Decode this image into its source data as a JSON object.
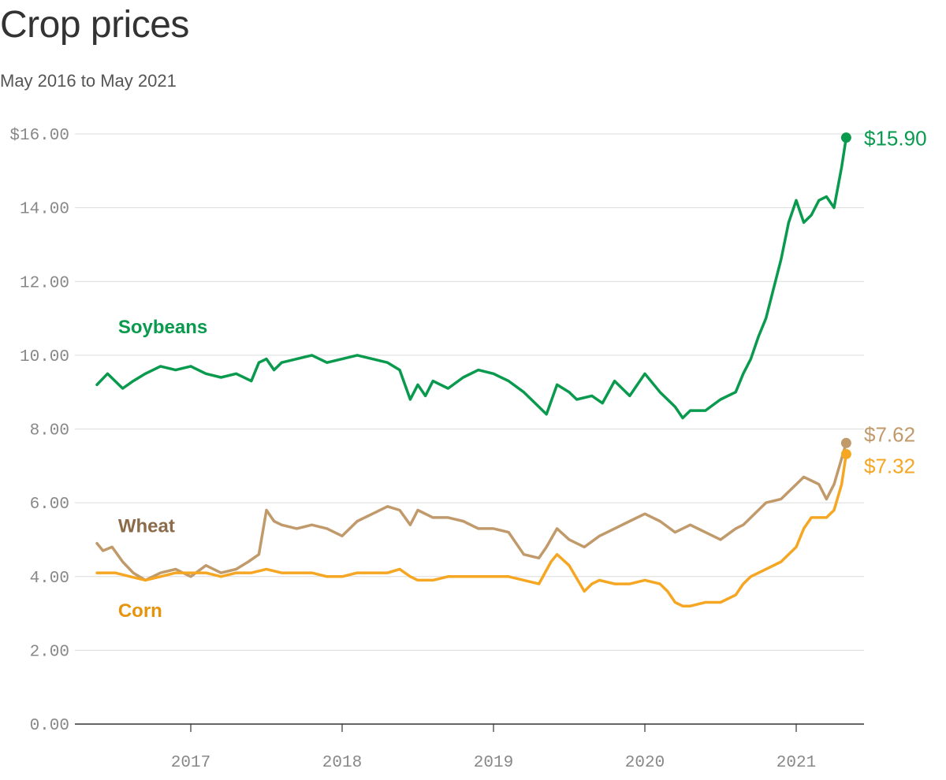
{
  "chart_data": {
    "type": "line",
    "title": "Crop prices",
    "subtitle": "May 2016 to May 2021",
    "ylim": [
      0,
      16
    ],
    "y_ticks": [
      0,
      2,
      4,
      6,
      8,
      10,
      12,
      14,
      16
    ],
    "y_tick_labels": [
      "0.00",
      "2.00",
      "4.00",
      "6.00",
      "8.00",
      "10.00",
      "12.00",
      "14.00",
      "$16.00"
    ],
    "xlim": [
      2016.3,
      2021.45
    ],
    "x_ticks": [
      2017,
      2018,
      2019,
      2020,
      2021
    ],
    "x_tick_labels": [
      "2017",
      "2018",
      "2019",
      "2020",
      "2021"
    ],
    "grid": true,
    "series": [
      {
        "name": "Soybeans",
        "color": "#0a9a4e",
        "end_label": "$15.90",
        "x": [
          2016.38,
          2016.45,
          2016.55,
          2016.62,
          2016.7,
          2016.8,
          2016.9,
          2017.0,
          2017.1,
          2017.2,
          2017.3,
          2017.4,
          2017.45,
          2017.5,
          2017.55,
          2017.6,
          2017.7,
          2017.8,
          2017.9,
          2018.0,
          2018.1,
          2018.2,
          2018.3,
          2018.38,
          2018.45,
          2018.5,
          2018.55,
          2018.6,
          2018.7,
          2018.8,
          2018.9,
          2019.0,
          2019.1,
          2019.2,
          2019.3,
          2019.35,
          2019.42,
          2019.5,
          2019.55,
          2019.65,
          2019.72,
          2019.8,
          2019.9,
          2020.0,
          2020.1,
          2020.2,
          2020.25,
          2020.3,
          2020.4,
          2020.5,
          2020.6,
          2020.65,
          2020.7,
          2020.75,
          2020.8,
          2020.85,
          2020.9,
          2020.95,
          2021.0,
          2021.05,
          2021.1,
          2021.15,
          2021.2,
          2021.25,
          2021.3,
          2021.33
        ],
        "values": [
          9.2,
          9.5,
          9.1,
          9.3,
          9.5,
          9.7,
          9.6,
          9.7,
          9.5,
          9.4,
          9.5,
          9.3,
          9.8,
          9.9,
          9.6,
          9.8,
          9.9,
          10.0,
          9.8,
          9.9,
          10.0,
          9.9,
          9.8,
          9.6,
          8.8,
          9.2,
          8.9,
          9.3,
          9.1,
          9.4,
          9.6,
          9.5,
          9.3,
          9.0,
          8.6,
          8.4,
          9.2,
          9.0,
          8.8,
          8.9,
          8.7,
          9.3,
          8.9,
          9.5,
          9.0,
          8.6,
          8.3,
          8.5,
          8.5,
          8.8,
          9.0,
          9.5,
          9.9,
          10.5,
          11.0,
          11.8,
          12.6,
          13.6,
          14.2,
          13.6,
          13.8,
          14.2,
          14.3,
          14.0,
          15.1,
          15.9
        ]
      },
      {
        "name": "Wheat",
        "color": "#8b6b4a",
        "end_color": "#c19a6b",
        "end_label": "$7.62",
        "x": [
          2016.38,
          2016.42,
          2016.48,
          2016.55,
          2016.62,
          2016.7,
          2016.8,
          2016.9,
          2017.0,
          2017.1,
          2017.2,
          2017.3,
          2017.38,
          2017.45,
          2017.5,
          2017.55,
          2017.6,
          2017.7,
          2017.8,
          2017.9,
          2018.0,
          2018.1,
          2018.2,
          2018.3,
          2018.38,
          2018.45,
          2018.5,
          2018.6,
          2018.7,
          2018.8,
          2018.9,
          2019.0,
          2019.1,
          2019.2,
          2019.3,
          2019.35,
          2019.42,
          2019.5,
          2019.6,
          2019.7,
          2019.8,
          2019.9,
          2020.0,
          2020.1,
          2020.2,
          2020.3,
          2020.4,
          2020.5,
          2020.6,
          2020.65,
          2020.7,
          2020.8,
          2020.9,
          2021.0,
          2021.05,
          2021.1,
          2021.15,
          2021.2,
          2021.25,
          2021.3,
          2021.33
        ],
        "values": [
          4.9,
          4.7,
          4.8,
          4.4,
          4.1,
          3.9,
          4.1,
          4.2,
          4.0,
          4.3,
          4.1,
          4.2,
          4.4,
          4.6,
          5.8,
          5.5,
          5.4,
          5.3,
          5.4,
          5.3,
          5.1,
          5.5,
          5.7,
          5.9,
          5.8,
          5.4,
          5.8,
          5.6,
          5.6,
          5.5,
          5.3,
          5.3,
          5.2,
          4.6,
          4.5,
          4.8,
          5.3,
          5.0,
          4.8,
          5.1,
          5.3,
          5.5,
          5.7,
          5.5,
          5.2,
          5.4,
          5.2,
          5.0,
          5.3,
          5.4,
          5.6,
          6.0,
          6.1,
          6.5,
          6.7,
          6.6,
          6.5,
          6.1,
          6.5,
          7.2,
          7.62
        ]
      },
      {
        "name": "Corn",
        "color": "#e8930c",
        "end_color": "#f5a623",
        "end_label": "$7.32",
        "x": [
          2016.38,
          2016.5,
          2016.6,
          2016.7,
          2016.8,
          2016.9,
          2017.0,
          2017.1,
          2017.2,
          2017.3,
          2017.4,
          2017.5,
          2017.6,
          2017.7,
          2017.8,
          2017.9,
          2018.0,
          2018.1,
          2018.2,
          2018.3,
          2018.38,
          2018.45,
          2018.5,
          2018.6,
          2018.7,
          2018.8,
          2018.9,
          2019.0,
          2019.1,
          2019.2,
          2019.3,
          2019.38,
          2019.42,
          2019.5,
          2019.6,
          2019.65,
          2019.7,
          2019.8,
          2019.9,
          2020.0,
          2020.1,
          2020.15,
          2020.2,
          2020.25,
          2020.3,
          2020.4,
          2020.5,
          2020.6,
          2020.65,
          2020.7,
          2020.8,
          2020.9,
          2021.0,
          2021.05,
          2021.1,
          2021.15,
          2021.2,
          2021.25,
          2021.3,
          2021.33
        ],
        "values": [
          4.1,
          4.1,
          4.0,
          3.9,
          4.0,
          4.1,
          4.1,
          4.1,
          4.0,
          4.1,
          4.1,
          4.2,
          4.1,
          4.1,
          4.1,
          4.0,
          4.0,
          4.1,
          4.1,
          4.1,
          4.2,
          4.0,
          3.9,
          3.9,
          4.0,
          4.0,
          4.0,
          4.0,
          4.0,
          3.9,
          3.8,
          4.4,
          4.6,
          4.3,
          3.6,
          3.8,
          3.9,
          3.8,
          3.8,
          3.9,
          3.8,
          3.6,
          3.3,
          3.2,
          3.2,
          3.3,
          3.3,
          3.5,
          3.8,
          4.0,
          4.2,
          4.4,
          4.8,
          5.3,
          5.6,
          5.6,
          5.6,
          5.8,
          6.5,
          7.32
        ]
      }
    ],
    "series_label_positions": [
      {
        "name": "Soybeans",
        "at_x": 2016.52,
        "at_y": 10.6
      },
      {
        "name": "Wheat",
        "at_x": 2016.52,
        "at_y": 5.2
      },
      {
        "name": "Corn",
        "at_x": 2016.52,
        "at_y": 2.9
      }
    ]
  }
}
